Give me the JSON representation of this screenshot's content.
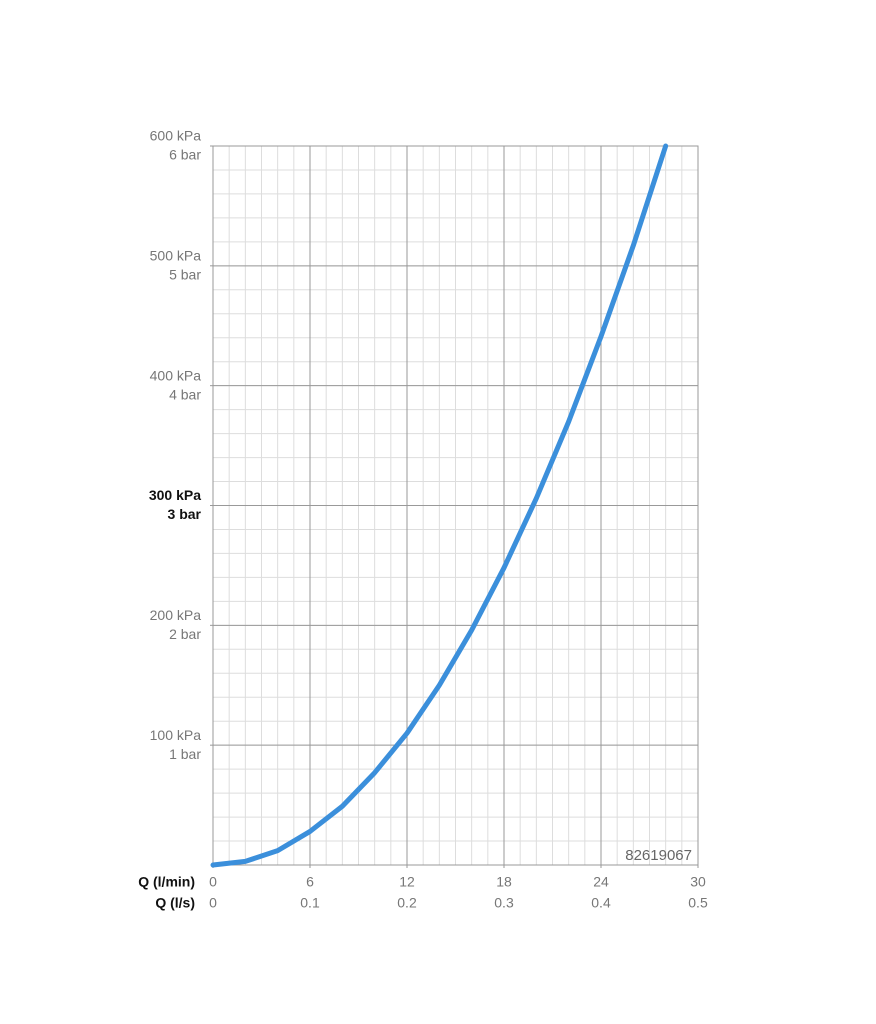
{
  "chart_data": {
    "type": "line",
    "x": [
      0,
      2,
      4,
      6,
      8,
      10,
      12,
      14,
      16,
      18,
      20,
      22,
      24,
      26,
      28
    ],
    "series": [
      {
        "color": "#3b8fdb",
        "values": [
          0,
          3,
          12,
          28,
          49,
          77,
          110,
          150,
          196,
          248,
          306,
          370,
          441,
          517,
          600
        ]
      }
    ],
    "xlim": [
      0,
      30
    ],
    "xticks": [
      0,
      6,
      12,
      18,
      24,
      30
    ],
    "x2lim": [
      0,
      0.5
    ],
    "x2ticks": [
      0,
      0.1,
      0.2,
      0.3,
      0.4,
      0.5
    ],
    "xlabel": "Q (l/min)",
    "x2label": "Q (l/s)",
    "ylim": [
      0,
      600
    ],
    "yticks": [
      {
        "value": 100,
        "label": "100 kPa"
      },
      {
        "value": 200,
        "label": "200 kPa"
      },
      {
        "value": 300,
        "label": "300 kPa"
      },
      {
        "value": 400,
        "label": "400 kPa"
      },
      {
        "value": 500,
        "label": "500 kPa"
      },
      {
        "value": 600,
        "label": "600 kPa"
      }
    ],
    "y2lim": [
      0,
      6
    ],
    "y2ticks": [
      {
        "value": 1,
        "label": "1 bar"
      },
      {
        "value": 2,
        "label": "2 bar"
      },
      {
        "value": 3,
        "label": "3 bar"
      },
      {
        "value": 4,
        "label": "4 bar"
      },
      {
        "value": 5,
        "label": "5 bar"
      },
      {
        "value": 6,
        "label": "6 bar"
      }
    ],
    "bold_ytick": 300,
    "grid": true,
    "minor_grid": {
      "x": 1,
      "y": 20
    },
    "annotation": "82619067"
  }
}
